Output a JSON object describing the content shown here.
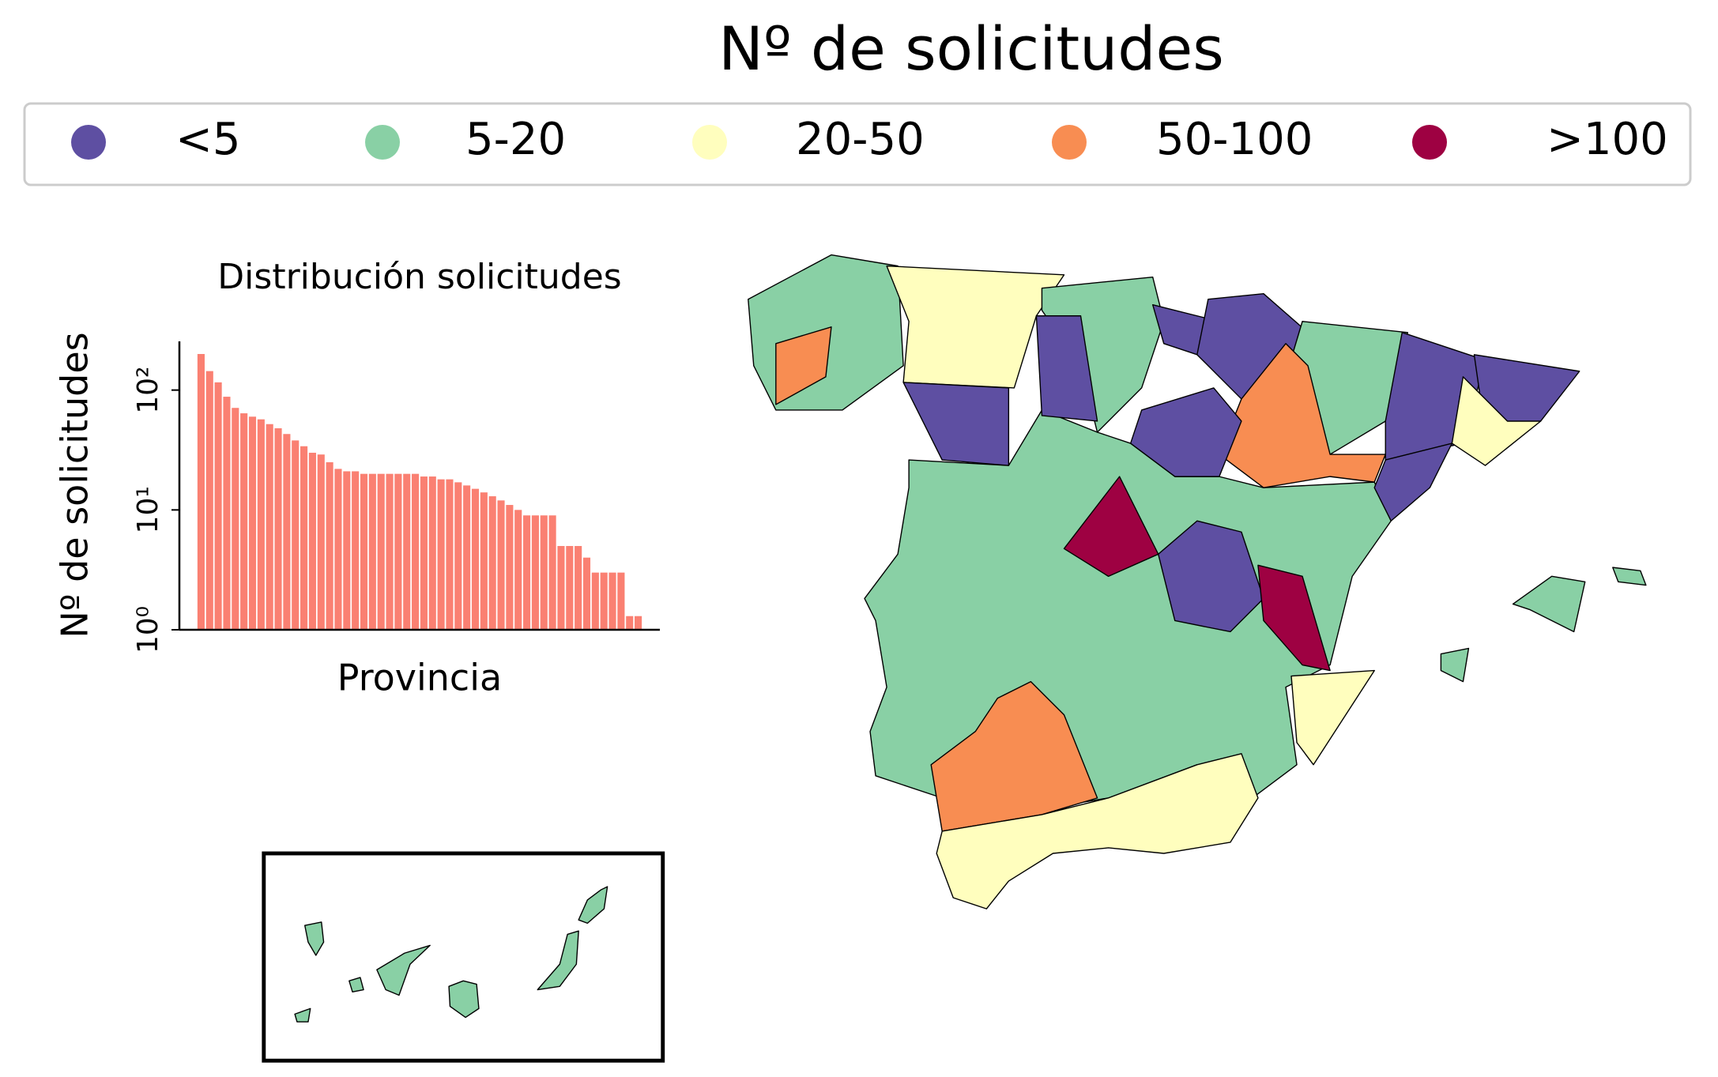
{
  "title": "Nº de solicitudes",
  "legend": [
    {
      "label": "<5",
      "color": "#5e4fa2"
    },
    {
      "label": "5-20",
      "color": "#89d0a5"
    },
    {
      "label": "20-50",
      "color": "#fffebe"
    },
    {
      "label": "50-100",
      "color": "#f88d52"
    },
    {
      "label": ">100",
      "color": "#9e0142"
    }
  ],
  "chart_data": {
    "type": "bar",
    "title": "Distribución solicitudes",
    "xlabel": "Provincia",
    "ylabel": "Nº de solicitudes",
    "log_scale": true,
    "color": "#fa8072",
    "values": [
      200,
      144,
      116,
      88,
      71,
      64,
      60,
      57,
      52,
      48,
      43,
      38,
      34,
      30,
      29,
      25,
      22,
      21,
      21,
      20,
      20,
      20,
      20,
      20,
      20,
      20,
      19,
      19,
      18,
      18,
      17,
      16,
      15,
      14,
      13,
      12,
      11,
      10,
      9,
      9,
      9,
      9,
      5,
      5,
      5,
      4,
      3,
      3,
      3,
      3,
      1.3,
      1.3
    ],
    "ylim": [
      1,
      255
    ],
    "yticks": [
      {
        "value": 1,
        "label": "10⁰"
      },
      {
        "value": 10,
        "label": "10¹"
      },
      {
        "value": 100,
        "label": "10²"
      }
    ]
  }
}
